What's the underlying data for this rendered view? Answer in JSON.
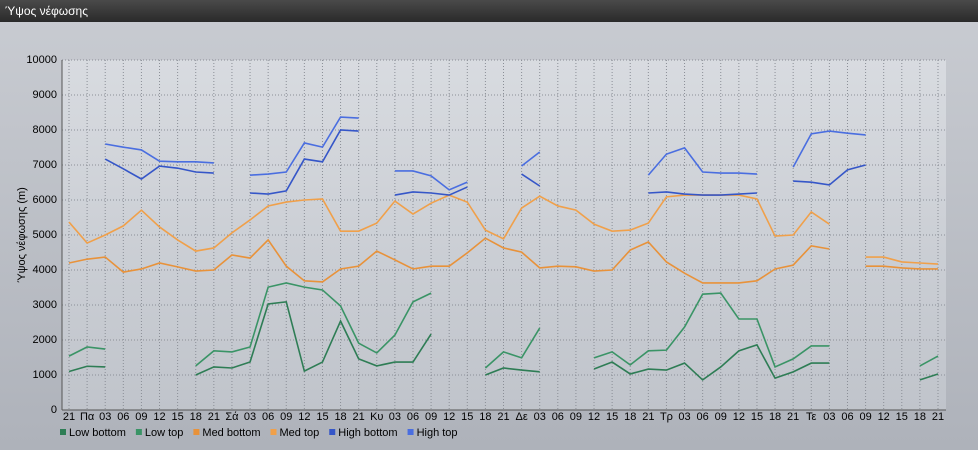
{
  "chart_data": {
    "type": "line",
    "title": "Ύψος νέφωσης",
    "y_label": "Ύψος νέφωσης (m)",
    "categories": [
      "21",
      "Πα",
      "03",
      "06",
      "09",
      "12",
      "15",
      "18",
      "21",
      "Σά",
      "03",
      "06",
      "09",
      "12",
      "15",
      "18",
      "21",
      "Κυ",
      "03",
      "06",
      "09",
      "12",
      "15",
      "18",
      "21",
      "Δε",
      "03",
      "06",
      "09",
      "12",
      "15",
      "18",
      "21",
      "Τρ",
      "03",
      "06",
      "09",
      "12",
      "15",
      "18",
      "21",
      "Τε",
      "03",
      "06",
      "09",
      "12",
      "15",
      "18",
      "21"
    ],
    "ylim": [
      0,
      10000
    ],
    "yticks": [
      0,
      1000,
      2000,
      3000,
      4000,
      5000,
      6000,
      7000,
      8000,
      9000,
      10000
    ],
    "grid": true,
    "series": [
      {
        "name": "Low bottom",
        "color": "#2e7d55",
        "values": [
          1100,
          1250,
          1230,
          null,
          null,
          null,
          null,
          1000,
          1230,
          1200,
          1370,
          3030,
          3090,
          1110,
          1370,
          2540,
          1460,
          1260,
          1370,
          1370,
          2170,
          null,
          null,
          1000,
          1200,
          1140,
          1090,
          null,
          null,
          1170,
          1370,
          1030,
          1170,
          1140,
          1340,
          860,
          1230,
          1690,
          1860,
          910,
          1090,
          1340,
          1340,
          null,
          null,
          null,
          null,
          860,
          1030
        ]
      },
      {
        "name": "Low top",
        "color": "#3a9466",
        "values": [
          1540,
          1800,
          1740,
          null,
          null,
          null,
          null,
          1260,
          1690,
          1660,
          1800,
          3510,
          3630,
          3510,
          3430,
          2970,
          1910,
          1630,
          2140,
          3090,
          3340,
          null,
          null,
          1200,
          1660,
          1490,
          2340,
          null,
          null,
          1490,
          1660,
          1290,
          1690,
          1710,
          2370,
          3310,
          3340,
          2600,
          2600,
          1230,
          1460,
          1830,
          1830,
          null,
          null,
          null,
          null,
          1260,
          1540
        ]
      },
      {
        "name": "Med bottom",
        "color": "#e8923a",
        "values": [
          4200,
          4310,
          4370,
          3940,
          4030,
          4200,
          4090,
          3970,
          4000,
          4430,
          4340,
          4860,
          4110,
          3690,
          3660,
          4030,
          4110,
          4540,
          4290,
          4030,
          4110,
          4110,
          4490,
          4910,
          4630,
          4510,
          4060,
          4110,
          4090,
          3970,
          4000,
          4570,
          4800,
          4230,
          3910,
          3630,
          3630,
          3630,
          3690,
          4030,
          4140,
          4690,
          4600,
          null,
          4110,
          4110,
          4060,
          4030,
          4030
        ]
      },
      {
        "name": "Med top",
        "color": "#f0a04a",
        "values": [
          5370,
          4770,
          5000,
          5260,
          5710,
          5230,
          4860,
          4540,
          4630,
          5060,
          5430,
          5830,
          5940,
          6000,
          6030,
          5110,
          5110,
          5340,
          5970,
          5600,
          5910,
          6140,
          5940,
          5140,
          4890,
          5770,
          6110,
          5830,
          5710,
          5310,
          5110,
          5140,
          5340,
          6090,
          6140,
          6140,
          6140,
          6140,
          6030,
          4970,
          5000,
          5660,
          5310,
          null,
          4370,
          4370,
          4230,
          4200,
          4170
        ]
      },
      {
        "name": "High bottom",
        "color": "#3556c8",
        "values": [
          null,
          null,
          7170,
          6890,
          6600,
          6970,
          6910,
          6800,
          6770,
          null,
          6200,
          6170,
          6260,
          7170,
          7090,
          8000,
          7970,
          null,
          6140,
          6230,
          6200,
          6140,
          6370,
          null,
          null,
          6740,
          6400,
          null,
          null,
          null,
          null,
          null,
          6200,
          6230,
          6170,
          6140,
          6140,
          6170,
          6200,
          null,
          6540,
          6510,
          6430,
          6860,
          7000,
          null,
          null,
          null,
          null
        ]
      },
      {
        "name": "High top",
        "color": "#4a6ee0",
        "values": [
          null,
          null,
          7600,
          7510,
          7430,
          7110,
          7090,
          7090,
          7060,
          null,
          6710,
          6740,
          6800,
          7630,
          7510,
          8370,
          8340,
          null,
          6830,
          6830,
          6690,
          6290,
          6510,
          null,
          null,
          6970,
          7370,
          null,
          null,
          null,
          null,
          null,
          6710,
          7310,
          7490,
          6800,
          6770,
          6770,
          6740,
          null,
          6940,
          7890,
          7970,
          7910,
          7860,
          null,
          null,
          null,
          null
        ]
      }
    ]
  }
}
